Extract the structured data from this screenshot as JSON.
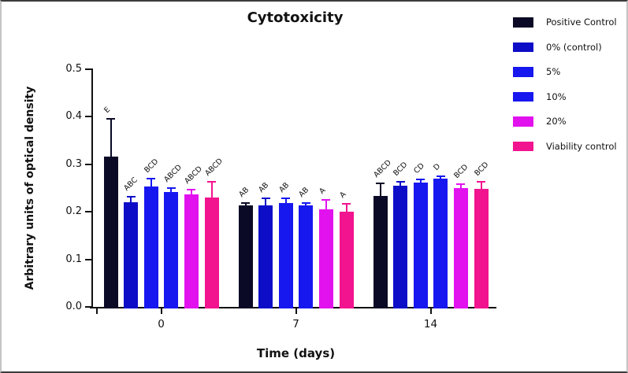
{
  "window": {
    "background": "#ffffff",
    "frame_border_dark": "#3c3c3c",
    "frame_border_light": "#c4c4c4"
  },
  "chart_data": {
    "type": "bar",
    "title": "Cytotoxicity",
    "xlabel": "Time (days)",
    "ylabel": "Arbitrary units of optical density",
    "ylim": [
      0,
      0.5
    ],
    "yticks": [
      "0.0",
      "0.1",
      "0.2",
      "0.3",
      "0.4",
      "0.5"
    ],
    "categories": [
      "0",
      "7",
      "14"
    ],
    "grid": false,
    "legend_position": "top-right",
    "error_bars": "upper-sd",
    "series": [
      {
        "name": "Positive Control",
        "color": "#0a0a26",
        "values": [
          0.317,
          0.214,
          0.234
        ],
        "errors": [
          0.078,
          0.005,
          0.026
        ],
        "sig_letters": [
          "E",
          "AB",
          "ABCD"
        ]
      },
      {
        "name": "0% (control)",
        "color": "#0d0dc8",
        "values": [
          0.22,
          0.214,
          0.255
        ],
        "errors": [
          0.012,
          0.015,
          0.008
        ],
        "sig_letters": [
          "ABC",
          "AB",
          "BCD"
        ]
      },
      {
        "name": "5%",
        "color": "#1717f0",
        "values": [
          0.254,
          0.218,
          0.261
        ],
        "errors": [
          0.016,
          0.011,
          0.008
        ],
        "sig_letters": [
          "BCD",
          "AB",
          "CD"
        ]
      },
      {
        "name": "10%",
        "color": "#1717f0",
        "values": [
          0.241,
          0.213,
          0.27
        ],
        "errors": [
          0.009,
          0.006,
          0.005
        ],
        "sig_letters": [
          "ABCD",
          "AB",
          "D"
        ]
      },
      {
        "name": "20%",
        "color": "#e212ee",
        "values": [
          0.237,
          0.206,
          0.25
        ],
        "errors": [
          0.009,
          0.019,
          0.008
        ],
        "sig_letters": [
          "ABCD",
          "A",
          "BCD"
        ]
      },
      {
        "name": "Viability control",
        "color": "#f2138f",
        "values": [
          0.23,
          0.201,
          0.249
        ],
        "errors": [
          0.033,
          0.016,
          0.015
        ],
        "sig_letters": [
          "ABCD",
          "A",
          "BCD"
        ]
      }
    ]
  }
}
